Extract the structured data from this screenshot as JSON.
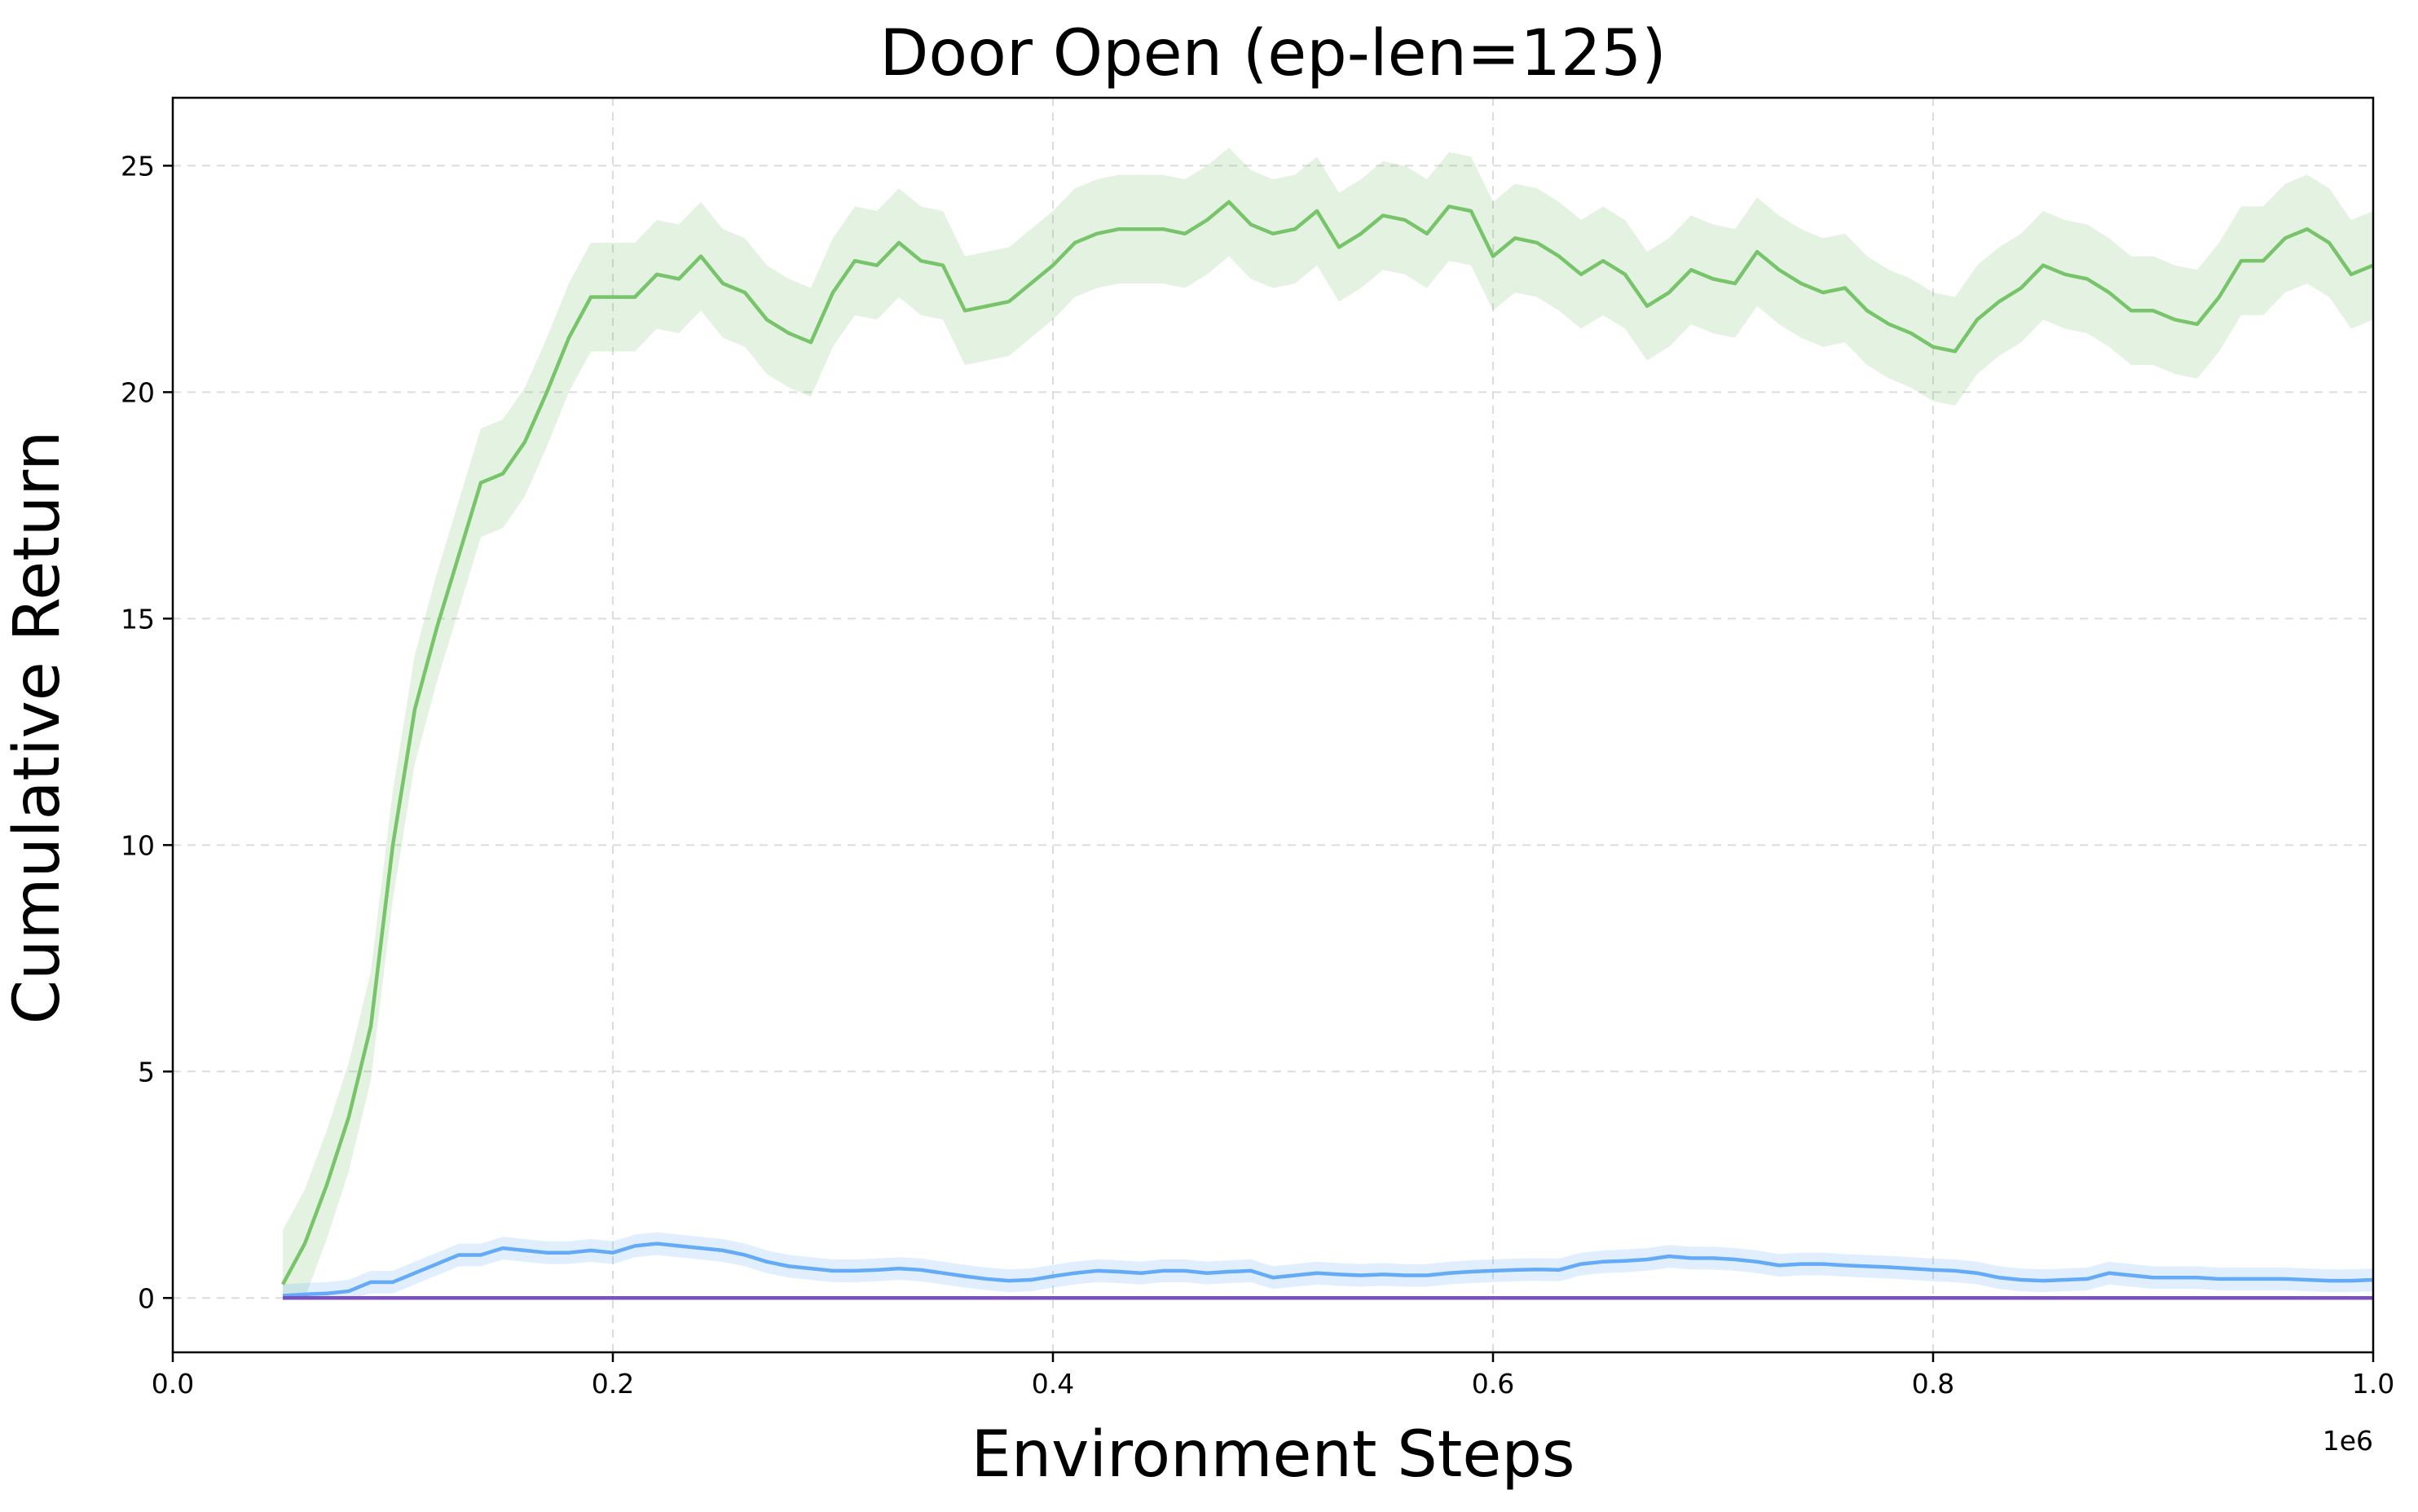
{
  "chart_data": {
    "type": "line",
    "title": "Door Open (ep-len=125)",
    "xlabel": "Environment Steps",
    "ylabel": "Cumulative Return",
    "x_offset_label": "1e6",
    "xlim": [
      0,
      1.0
    ],
    "ylim": [
      -1.2,
      26.5
    ],
    "x_ticks": [
      0.0,
      0.2,
      0.4,
      0.6,
      0.8,
      1.0
    ],
    "x_tick_labels": [
      "0.0",
      "0.2",
      "0.4",
      "0.6",
      "0.8",
      "1.0"
    ],
    "y_ticks": [
      0,
      5,
      10,
      15,
      20,
      25
    ],
    "y_tick_labels": [
      "0",
      "5",
      "10",
      "15",
      "20",
      "25"
    ],
    "grid": true,
    "grid_style": "dashed",
    "x": [
      0.05,
      0.06,
      0.07,
      0.08,
      0.09,
      0.1,
      0.11,
      0.12,
      0.13,
      0.14,
      0.15,
      0.16,
      0.17,
      0.18,
      0.19,
      0.2,
      0.21,
      0.22,
      0.23,
      0.24,
      0.25,
      0.26,
      0.27,
      0.28,
      0.29,
      0.3,
      0.31,
      0.32,
      0.33,
      0.34,
      0.35,
      0.36,
      0.37,
      0.38,
      0.39,
      0.4,
      0.41,
      0.42,
      0.43,
      0.44,
      0.45,
      0.46,
      0.47,
      0.48,
      0.49,
      0.5,
      0.51,
      0.52,
      0.53,
      0.54,
      0.55,
      0.56,
      0.57,
      0.58,
      0.59,
      0.6,
      0.61,
      0.62,
      0.63,
      0.64,
      0.65,
      0.66,
      0.67,
      0.68,
      0.69,
      0.7,
      0.71,
      0.72,
      0.73,
      0.74,
      0.75,
      0.76,
      0.77,
      0.78,
      0.79,
      0.8,
      0.81,
      0.82,
      0.83,
      0.84,
      0.85,
      0.86,
      0.87,
      0.88,
      0.89,
      0.9,
      0.91,
      0.92,
      0.93,
      0.94,
      0.95,
      0.96,
      0.97,
      0.98,
      0.99,
      1.0
    ],
    "series": [
      {
        "color": "#77c46a",
        "band_color": "#77c46a",
        "values": [
          0.3,
          1.2,
          2.5,
          4.0,
          6.0,
          10.0,
          13.0,
          14.8,
          16.4,
          18.0,
          18.2,
          18.9,
          20.0,
          21.2,
          22.1,
          22.1,
          22.1,
          22.6,
          22.5,
          23.0,
          22.4,
          22.2,
          21.6,
          21.3,
          21.1,
          22.2,
          22.9,
          22.8,
          23.3,
          22.9,
          22.8,
          21.8,
          21.9,
          22.0,
          22.4,
          22.8,
          23.3,
          23.5,
          23.6,
          23.6,
          23.6,
          23.5,
          23.8,
          24.2,
          23.7,
          23.5,
          23.6,
          24.0,
          23.2,
          23.5,
          23.9,
          23.8,
          23.5,
          24.1,
          24.0,
          23.0,
          23.4,
          23.3,
          23.0,
          22.6,
          22.9,
          22.6,
          21.9,
          22.2,
          22.7,
          22.5,
          22.4,
          23.1,
          22.7,
          22.4,
          22.2,
          22.3,
          21.8,
          21.5,
          21.3,
          21.0,
          20.9,
          21.6,
          22.0,
          22.3,
          22.8,
          22.6,
          22.5,
          22.2,
          21.8,
          21.8,
          21.6,
          21.5,
          22.1,
          22.9,
          22.9,
          23.4,
          23.6,
          23.3,
          22.6,
          22.8
        ],
        "band": 1.2
      },
      {
        "color": "#63aaf7",
        "band_color": "#63aaf7",
        "values": [
          0.05,
          0.08,
          0.1,
          0.15,
          0.35,
          0.35,
          0.55,
          0.75,
          0.95,
          0.95,
          1.1,
          1.05,
          1.0,
          1.0,
          1.05,
          1.0,
          1.15,
          1.2,
          1.15,
          1.1,
          1.05,
          0.95,
          0.8,
          0.7,
          0.65,
          0.6,
          0.6,
          0.62,
          0.65,
          0.62,
          0.55,
          0.48,
          0.42,
          0.38,
          0.4,
          0.48,
          0.55,
          0.6,
          0.58,
          0.55,
          0.6,
          0.6,
          0.55,
          0.58,
          0.6,
          0.45,
          0.5,
          0.55,
          0.52,
          0.5,
          0.52,
          0.5,
          0.5,
          0.55,
          0.58,
          0.6,
          0.62,
          0.63,
          0.62,
          0.75,
          0.8,
          0.82,
          0.85,
          0.92,
          0.88,
          0.88,
          0.85,
          0.8,
          0.72,
          0.75,
          0.75,
          0.72,
          0.7,
          0.68,
          0.65,
          0.62,
          0.6,
          0.55,
          0.45,
          0.4,
          0.38,
          0.4,
          0.42,
          0.55,
          0.5,
          0.45,
          0.45,
          0.45,
          0.42,
          0.42,
          0.42,
          0.42,
          0.4,
          0.38,
          0.38,
          0.4
        ],
        "band": 0.25
      },
      {
        "color": "#7c4fc0",
        "values": [
          0,
          0,
          0,
          0,
          0,
          0,
          0,
          0,
          0,
          0,
          0,
          0,
          0,
          0,
          0,
          0,
          0,
          0,
          0,
          0,
          0,
          0,
          0,
          0,
          0,
          0,
          0,
          0,
          0,
          0,
          0,
          0,
          0,
          0,
          0,
          0,
          0,
          0,
          0,
          0,
          0,
          0,
          0,
          0,
          0,
          0,
          0,
          0,
          0,
          0,
          0,
          0,
          0,
          0,
          0,
          0,
          0,
          0,
          0,
          0,
          0,
          0,
          0,
          0,
          0,
          0,
          0,
          0,
          0,
          0,
          0,
          0,
          0,
          0,
          0,
          0,
          0,
          0,
          0,
          0,
          0,
          0,
          0,
          0,
          0,
          0,
          0,
          0,
          0,
          0,
          0,
          0,
          0,
          0,
          0,
          0
        ]
      }
    ]
  }
}
